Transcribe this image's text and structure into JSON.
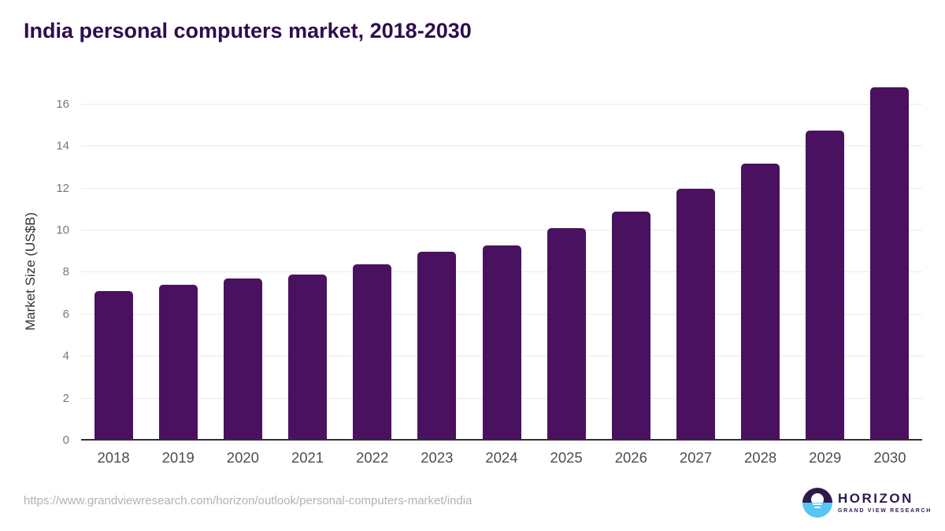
{
  "title": "India personal computers market, 2018-2030",
  "chart_data": {
    "type": "bar",
    "title": "India personal computers market, 2018-2030",
    "categories": [
      "2018",
      "2019",
      "2020",
      "2021",
      "2022",
      "2023",
      "2024",
      "2025",
      "2026",
      "2027",
      "2028",
      "2029",
      "2030"
    ],
    "values": [
      7.1,
      7.4,
      7.7,
      7.9,
      8.4,
      9.0,
      9.3,
      10.1,
      10.9,
      12.0,
      13.2,
      14.75,
      16.8
    ],
    "xlabel": "",
    "ylabel": "Market Size (US$B)",
    "yticks": [
      0,
      2,
      4,
      6,
      8,
      10,
      12,
      14,
      16
    ],
    "ylim": [
      0,
      17.2
    ],
    "grid": true,
    "legend": false,
    "bar_color": "#4a1160"
  },
  "colors": {
    "bar": "#4a1160",
    "title_text": "#2e0d4e",
    "gridline": "#eaeaea",
    "axis_line": "#332d39",
    "ytick_text": "#787878",
    "xtick_text": "#4d4d4d",
    "url_text": "#b2b2b2",
    "logo_purple": "#2d1b4e",
    "logo_blue": "#56c6f2"
  },
  "footer": {
    "source_url": "https://www.grandviewresearch.com/horizon/outlook/personal-computers-market/india"
  },
  "logo": {
    "brand": "HORIZON",
    "tagline": "GRAND VIEW RESEARCH"
  }
}
